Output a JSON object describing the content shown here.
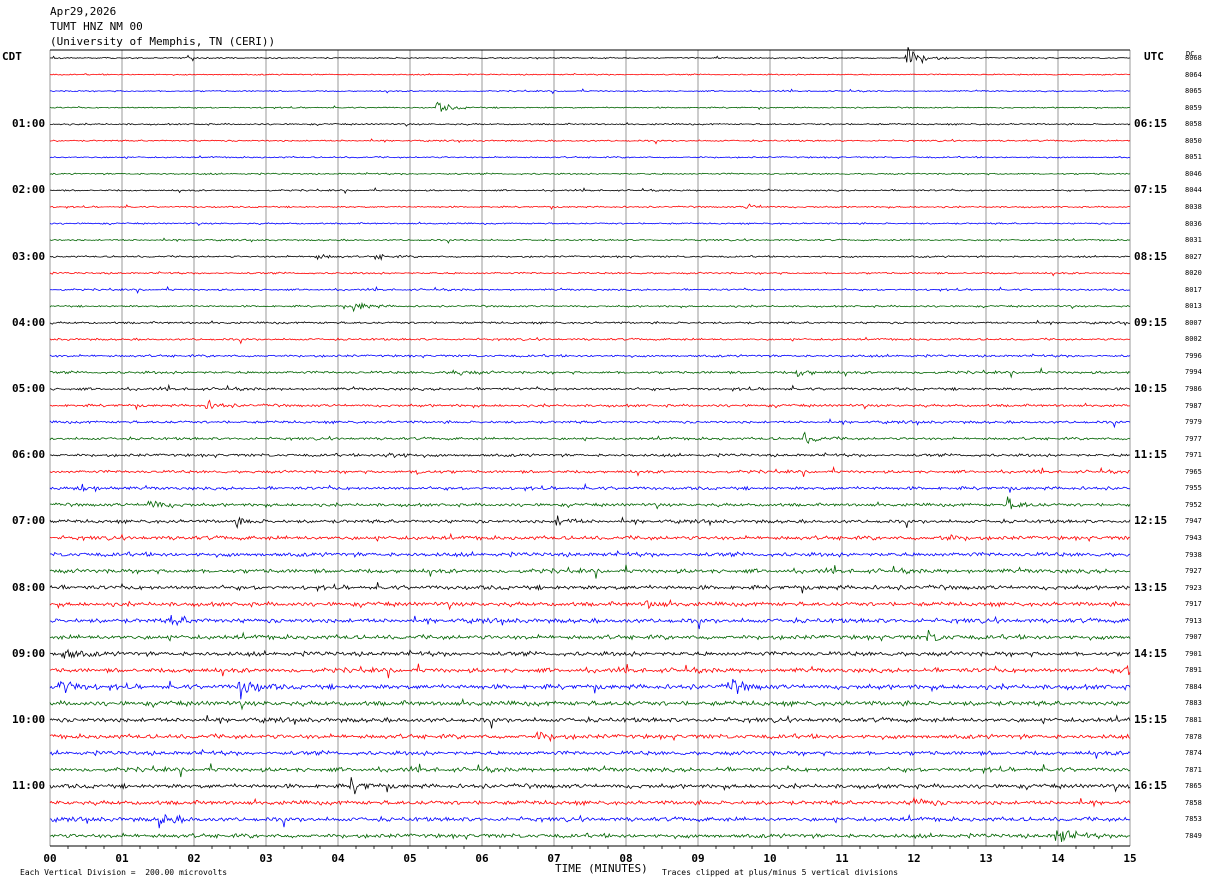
{
  "header": {
    "date": "Apr29,2026",
    "station": "TUMT HNZ NM 00",
    "institution": "(University of Memphis, TN (CERI))"
  },
  "left_label": "CDT",
  "right_label": "UTC",
  "dc_label": "DC",
  "footer": {
    "scale_note": "Each Vertical Division =  200.00 microvolts",
    "clip_note": "Traces clipped at plus/minus 5 vertical divisions"
  },
  "colors": {
    "trace_cycle": [
      "#000000",
      "#ff0000",
      "#0000ff",
      "#006400"
    ],
    "grid": "#555555"
  },
  "chart_data": {
    "type": "line",
    "xlabel": "TIME (MINUTES)",
    "x_ticks": [
      "00",
      "01",
      "02",
      "03",
      "04",
      "05",
      "06",
      "07",
      "08",
      "09",
      "10",
      "11",
      "12",
      "13",
      "14",
      "15"
    ],
    "xlim": [
      0,
      15
    ],
    "left_hour_labels": [
      "01:00",
      "02:00",
      "03:00",
      "04:00",
      "05:00",
      "06:00",
      "07:00",
      "08:00",
      "09:00",
      "10:00",
      "11:00"
    ],
    "right_hour_labels": [
      "06:15",
      "07:15",
      "08:15",
      "09:15",
      "10:15",
      "11:15",
      "12:15",
      "13:15",
      "14:15",
      "15:15",
      "16:15"
    ],
    "dc_offsets": [
      "8068",
      "8064",
      "8065",
      "8059",
      "8058",
      "8050",
      "8051",
      "8046",
      "8044",
      "8038",
      "8036",
      "8031",
      "8027",
      "8020",
      "8017",
      "8013",
      "8007",
      "8002",
      "7996",
      "7994",
      "7986",
      "7987",
      "7979",
      "7977",
      "7971",
      "7965",
      "7955",
      "7952",
      "7947",
      "7943",
      "7938",
      "7927",
      "7923",
      "7917",
      "7913",
      "7907",
      "7901",
      "7891",
      "7884",
      "7883",
      "7881",
      "7878",
      "7874",
      "7871",
      "7865",
      "7858",
      "7853",
      "7849"
    ],
    "noise_level": [
      0.5,
      0.5,
      0.5,
      0.5,
      0.6,
      0.6,
      0.6,
      0.6,
      0.6,
      0.6,
      0.6,
      0.6,
      0.7,
      0.7,
      0.7,
      0.7,
      0.8,
      0.8,
      0.9,
      1.0,
      1.0,
      1.0,
      1.0,
      1.0,
      1.1,
      1.1,
      1.2,
      1.2,
      1.3,
      1.5,
      1.6,
      1.6,
      1.6,
      1.6,
      1.7,
      1.7,
      1.7,
      1.7,
      1.8,
      1.8,
      1.7,
      1.7,
      1.6,
      1.6,
      1.6,
      1.6,
      1.6,
      1.6
    ],
    "events": [
      {
        "trace": 0,
        "minute": 11.92,
        "amplitude": 10
      },
      {
        "trace": 3,
        "minute": 5.4,
        "amplitude": 4
      },
      {
        "trace": 9,
        "minute": 9.7,
        "amplitude": 2
      },
      {
        "trace": 12,
        "minute": 3.65,
        "amplitude": 3
      },
      {
        "trace": 12,
        "minute": 4.55,
        "amplitude": 2
      },
      {
        "trace": 15,
        "minute": 4.25,
        "amplitude": 4
      },
      {
        "trace": 19,
        "minute": 5.6,
        "amplitude": 3
      },
      {
        "trace": 19,
        "minute": 10.4,
        "amplitude": 3
      },
      {
        "trace": 21,
        "minute": 2.2,
        "amplitude": 3
      },
      {
        "trace": 23,
        "minute": 10.5,
        "amplitude": 4
      },
      {
        "trace": 24,
        "minute": 4.7,
        "amplitude": 4
      },
      {
        "trace": 25,
        "minute": 5.1,
        "amplitude": 2
      },
      {
        "trace": 26,
        "minute": 0.4,
        "amplitude": 5
      },
      {
        "trace": 27,
        "minute": 1.4,
        "amplitude": 4
      },
      {
        "trace": 27,
        "minute": 13.3,
        "amplitude": 5
      },
      {
        "trace": 28,
        "minute": 2.6,
        "amplitude": 3
      },
      {
        "trace": 28,
        "minute": 7.05,
        "amplitude": 4
      },
      {
        "trace": 29,
        "minute": 12.4,
        "amplitude": 3
      },
      {
        "trace": 33,
        "minute": 8.3,
        "amplitude": 3
      },
      {
        "trace": 34,
        "minute": 1.7,
        "amplitude": 4
      },
      {
        "trace": 35,
        "minute": 12.2,
        "amplitude": 4
      },
      {
        "trace": 36,
        "minute": 0.2,
        "amplitude": 5
      },
      {
        "trace": 37,
        "minute": 14.9,
        "amplitude": 4
      },
      {
        "trace": 38,
        "minute": 0.15,
        "amplitude": 9
      },
      {
        "trace": 38,
        "minute": 2.65,
        "amplitude": 9
      },
      {
        "trace": 38,
        "minute": 9.45,
        "amplitude": 6
      },
      {
        "trace": 41,
        "minute": 6.8,
        "amplitude": 4
      },
      {
        "trace": 44,
        "minute": 4.2,
        "amplitude": 5
      },
      {
        "trace": 45,
        "minute": 12.0,
        "amplitude": 4
      },
      {
        "trace": 46,
        "minute": 1.55,
        "amplitude": 5
      },
      {
        "trace": 47,
        "minute": 14.0,
        "amplitude": 8
      }
    ]
  }
}
